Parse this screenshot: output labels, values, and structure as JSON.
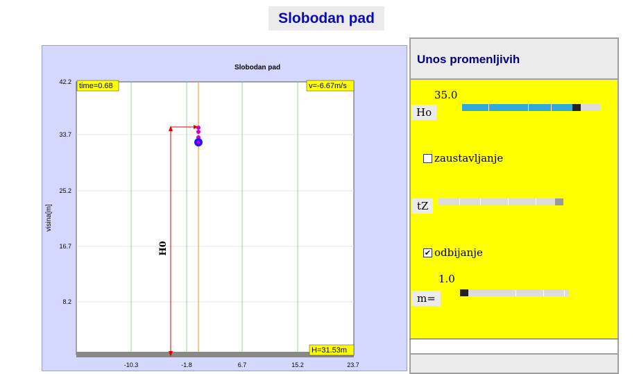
{
  "app": {
    "title": "Slobodan pad"
  },
  "plot": {
    "title": "Slobodan pad",
    "ylabel": "visina[m]",
    "time_readout": "time=0.68",
    "velocity_readout": "v=-6.67m/s",
    "height_readout": "H=31.53m",
    "h0_label": "H0",
    "yticks": [
      "42.2",
      "33.7",
      "25.2",
      "16.7",
      "8.2"
    ],
    "xticks": [
      "-10.3",
      "-1.8",
      "6.7",
      "15.2",
      "23.7"
    ]
  },
  "controls": {
    "header": "Unos promenljivih",
    "h0_label": "Ho",
    "h0_value": "35.0",
    "h0_fraction": 0.85,
    "stop_label": "zaustavljanje",
    "stop_checked": false,
    "tz_label": "tZ",
    "bounce_label": "odbijanje",
    "bounce_checked": true,
    "m_label": "m=",
    "m_value": "1.0",
    "m_fraction": 0.0
  },
  "colors": {
    "title": "#0b0bb0",
    "panel_bg": "#d4d8ff",
    "controls_bg": "#ffff00",
    "slider_fill": "#30a8d8",
    "readout_bg": "#ffff00",
    "h0_arrow": "#e00000",
    "ball": "#1a1aff",
    "trail": "#cc00cc"
  }
}
